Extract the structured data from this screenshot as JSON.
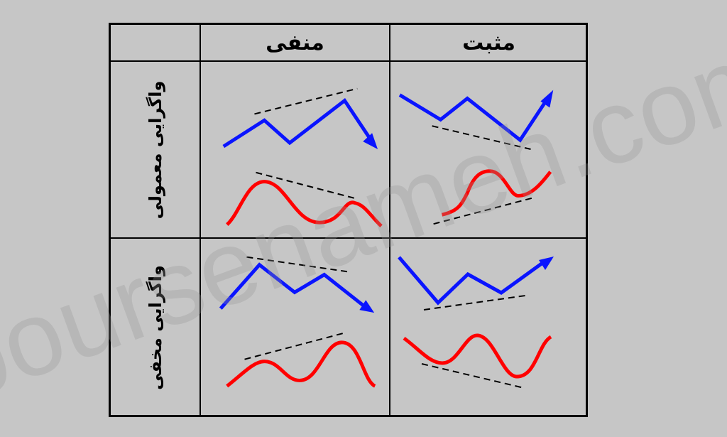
{
  "headers": {
    "col_negative": "منفی",
    "col_positive": "مثبت"
  },
  "row_labels": {
    "regular": "واگرایی معمولی",
    "hidden": "واگرایی مخفی"
  },
  "watermark": "boursenameh.com",
  "colors": {
    "price_line": "#0a14ff",
    "indicator_line": "#ff0000",
    "trend_line": "#000000"
  }
}
